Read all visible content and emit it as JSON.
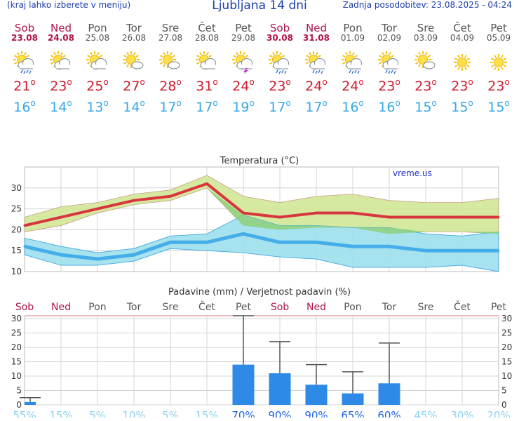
{
  "header": {
    "left_text": "(kraj lahko izberete v meniju)",
    "title": "Ljubljana 14 dni",
    "updated": "Zadnja posodobitev: 23.08.2025 - 04:24"
  },
  "days": [
    {
      "name": "Sob",
      "date": "23.08",
      "weekend": true,
      "icon": "sun-cloud-rain",
      "tmax": "21",
      "tmin": "16"
    },
    {
      "name": "Ned",
      "date": "24.08",
      "weekend": true,
      "icon": "sun-cloud",
      "tmax": "23",
      "tmin": "14"
    },
    {
      "name": "Pon",
      "date": "25.08",
      "weekend": false,
      "icon": "sun-cloud",
      "tmax": "25",
      "tmin": "13"
    },
    {
      "name": "Tor",
      "date": "26.08",
      "weekend": false,
      "icon": "sun-cloud-small",
      "tmax": "27",
      "tmin": "14"
    },
    {
      "name": "Sre",
      "date": "27.08",
      "weekend": false,
      "icon": "sun-cloud-small",
      "tmax": "28",
      "tmin": "17"
    },
    {
      "name": "Čet",
      "date": "28.08",
      "weekend": false,
      "icon": "sun-cloud",
      "tmax": "31",
      "tmin": "17"
    },
    {
      "name": "Pet",
      "date": "29.08",
      "weekend": false,
      "icon": "sun-cloud-storm",
      "tmax": "24",
      "tmin": "19"
    },
    {
      "name": "Sob",
      "date": "30.08",
      "weekend": true,
      "icon": "sun-cloud-rain",
      "tmax": "23",
      "tmin": "17"
    },
    {
      "name": "Ned",
      "date": "31.08",
      "weekend": true,
      "icon": "sun-cloud-rain",
      "tmax": "24",
      "tmin": "17"
    },
    {
      "name": "Pon",
      "date": "01.09",
      "weekend": false,
      "icon": "sun-cloud-rain",
      "tmax": "24",
      "tmin": "16"
    },
    {
      "name": "Tor",
      "date": "02.09",
      "weekend": false,
      "icon": "sun-cloud-rain",
      "tmax": "23",
      "tmin": "16"
    },
    {
      "name": "Sre",
      "date": "03.09",
      "weekend": false,
      "icon": "sun-cloud-small",
      "tmax": "23",
      "tmin": "15"
    },
    {
      "name": "Čet",
      "date": "04.09",
      "weekend": false,
      "icon": "sun",
      "tmax": "23",
      "tmin": "15"
    },
    {
      "name": "Pet",
      "date": "05.09",
      "weekend": false,
      "icon": "sun",
      "tmax": "23",
      "tmin": "15"
    }
  ],
  "colors": {
    "tmax": "#d8363e",
    "tmax_band": "#d4e89c",
    "tmin": "#45aee8",
    "tmin_band": "#9ee0ee",
    "overlap": "#8ed07a",
    "bar": "#2e8ae6",
    "weekend": "#b0124c",
    "weekday": "#555555",
    "text_blue": "#1a3ca8"
  },
  "chart_data": [
    {
      "type": "line",
      "title": "Temperatura (°C)",
      "watermark": "vreme.us",
      "ylim": [
        10,
        35
      ],
      "yticks": [
        10,
        15,
        20,
        25,
        30
      ],
      "series": [
        {
          "values": [
            21,
            23,
            25,
            27,
            28,
            31,
            24,
            23,
            24,
            24,
            23,
            23,
            23,
            23
          ]
        },
        {
          "values": [
            16,
            14,
            13,
            14,
            17,
            17,
            19,
            17,
            17,
            16,
            16,
            15,
            15,
            15
          ]
        }
      ],
      "tmax_band": {
        "upper": [
          23,
          25.5,
          26.5,
          28.5,
          29.5,
          33,
          28,
          26.5,
          28,
          28.5,
          27,
          26.5,
          26.5,
          27.5
        ],
        "lower": [
          19.5,
          21,
          24,
          26,
          27,
          30,
          21,
          20,
          20.5,
          20.5,
          19,
          19.5,
          19.5,
          19
        ]
      },
      "tmin_band": {
        "upper": [
          18,
          16,
          14.5,
          15.5,
          18.5,
          19,
          23.5,
          21,
          21,
          20.5,
          20.5,
          19,
          18.5,
          19.5
        ],
        "lower": [
          14,
          11.5,
          11.5,
          12.5,
          15.5,
          15,
          14.5,
          13.5,
          13,
          11,
          11,
          11,
          11.5,
          10
        ]
      }
    },
    {
      "type": "bar",
      "title": "Padavine (mm) / Verjetnost padavin (%)",
      "ylim": [
        0,
        31
      ],
      "yticks": [
        0,
        5,
        10,
        15,
        20,
        25,
        30
      ],
      "categories": [
        "Sob",
        "Ned",
        "Pon",
        "Tor",
        "Sre",
        "Čet",
        "Pet",
        "Sob",
        "Ned",
        "Pon",
        "Tor",
        "Sre",
        "Čet",
        "Pet"
      ],
      "weekend": [
        true,
        true,
        false,
        false,
        false,
        false,
        false,
        true,
        true,
        false,
        false,
        false,
        false,
        false
      ],
      "values": [
        1,
        0,
        0,
        0,
        0,
        0,
        14,
        11,
        7,
        4,
        7.5,
        0,
        0,
        0
      ],
      "error_high": [
        2.5,
        0,
        0,
        0,
        0,
        0,
        31,
        22,
        14,
        11.5,
        21.5,
        0,
        0,
        0
      ],
      "probability": [
        "55%",
        "15%",
        "5%",
        "10%",
        "5%",
        "15%",
        "70%",
        "90%",
        "90%",
        "65%",
        "60%",
        "45%",
        "30%",
        "20%"
      ],
      "probability_values": [
        55,
        15,
        5,
        10,
        5,
        15,
        70,
        90,
        90,
        65,
        60,
        45,
        30,
        20
      ]
    }
  ]
}
